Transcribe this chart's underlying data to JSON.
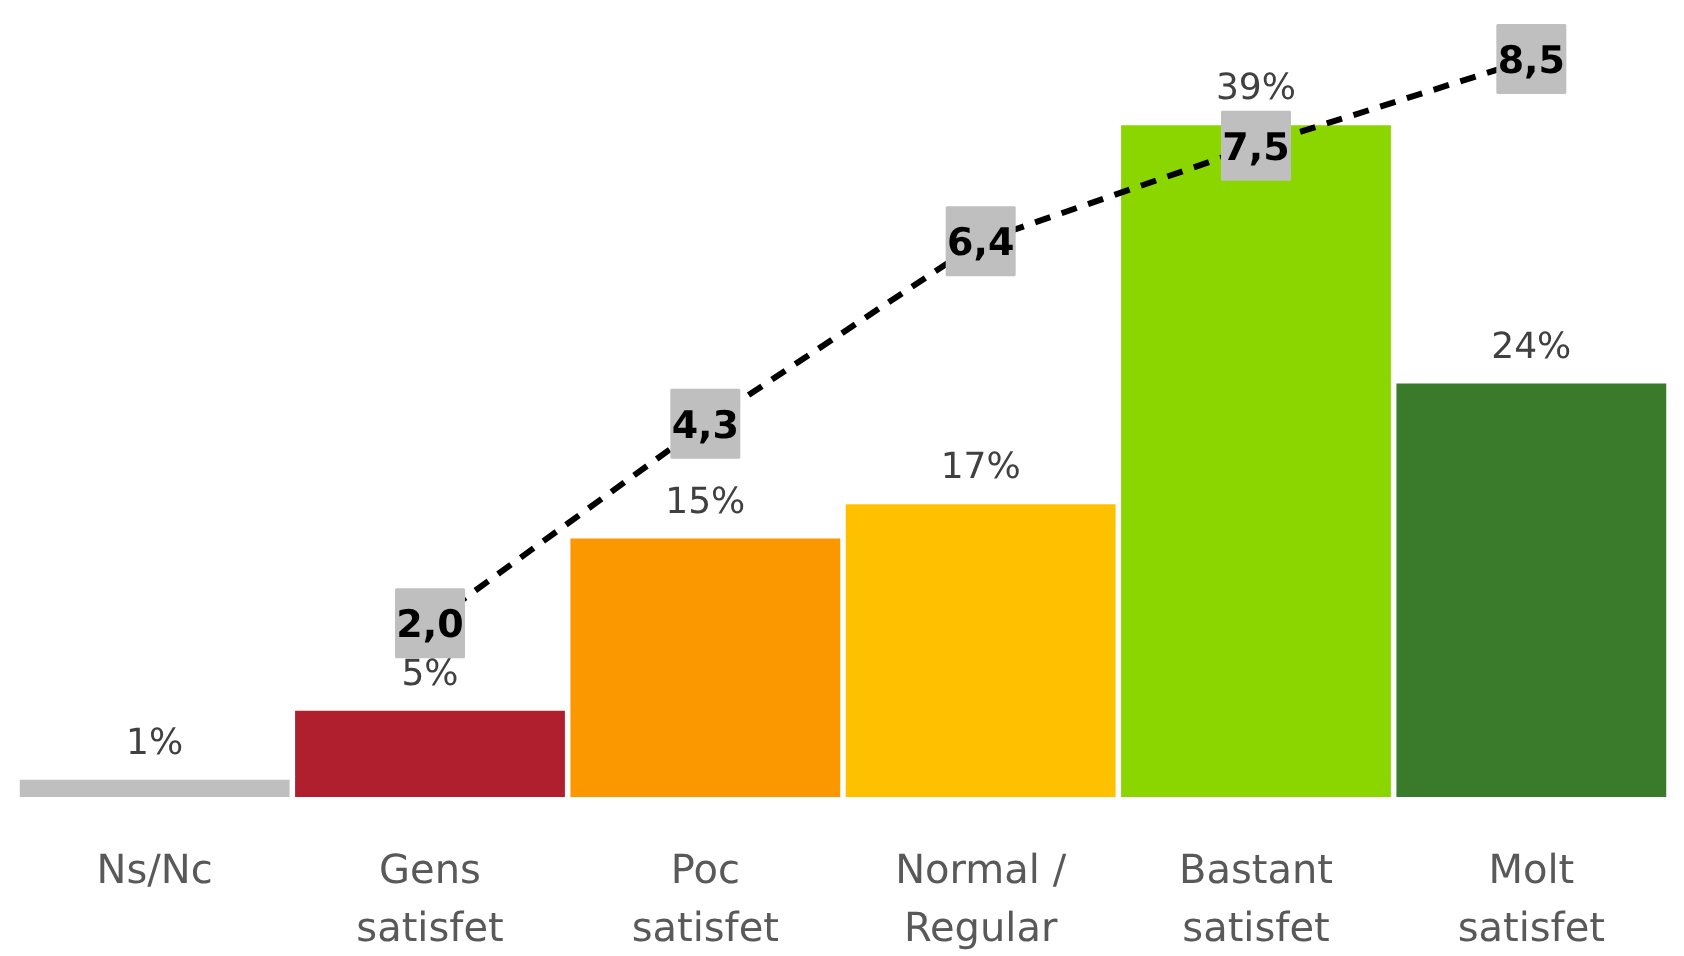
{
  "chart_data": {
    "type": "bar",
    "categories": [
      "Ns/Nc",
      "Gens satisfet",
      "Poc satisfet",
      "Normal / Regular",
      "Bastant satisfet",
      "Molt satisfet"
    ],
    "series": [
      {
        "colors": [
          "#bfbfbf",
          "#b01f2e",
          "#fb9800",
          "#ffc000",
          "#8cd600",
          "#3a7a2b"
        ],
        "values": [
          1,
          5,
          15,
          17,
          39,
          24
        ],
        "value_labels": [
          "1%",
          "5%",
          "15%",
          "17%",
          "39%",
          "24%"
        ]
      },
      {
        "type": "line",
        "axis": "y2",
        "color": "#000000",
        "line_style": "dashed",
        "marker": "square",
        "values": [
          null,
          2.0,
          4.3,
          6.4,
          7.5,
          8.5
        ],
        "value_labels": [
          null,
          "2,0",
          "4,3",
          "6,4",
          "7,5",
          "8,5"
        ]
      }
    ],
    "grid": false
  }
}
